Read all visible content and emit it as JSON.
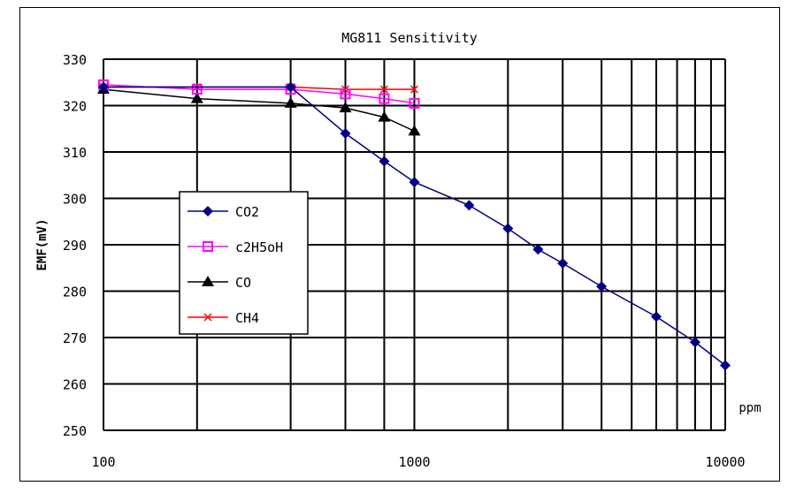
{
  "chart_data": {
    "type": "line",
    "title": "MG811 Sensitivity",
    "xlabel": "ppm",
    "ylabel": "EMF(mV)",
    "xscale": "log",
    "xlim": [
      100,
      10000
    ],
    "ylim": [
      250,
      330
    ],
    "x_ticks": [
      "100",
      "1000",
      "10000"
    ],
    "y_ticks": [
      "330",
      "320",
      "310",
      "300",
      "290",
      "280",
      "270",
      "260",
      "250"
    ],
    "grid": true,
    "legend": "center-left",
    "series": [
      {
        "name": "CO2",
        "color": "#000080",
        "marker": "diamond",
        "x": [
          100,
          400,
          600,
          800,
          1000,
          1500,
          2000,
          2500,
          3000,
          4000,
          6000,
          8000,
          10000
        ],
        "y": [
          324,
          324,
          314,
          308,
          303.5,
          298.5,
          293.5,
          289,
          286,
          281,
          274.5,
          269,
          264
        ]
      },
      {
        "name": "c2H5oH",
        "color": "#ff00ff",
        "marker": "square",
        "x": [
          100,
          200,
          400,
          600,
          800,
          1000
        ],
        "y": [
          324.5,
          323.5,
          323.5,
          322.5,
          321.5,
          320.5
        ]
      },
      {
        "name": "CO",
        "color": "#000000",
        "marker": "triangle",
        "x": [
          100,
          200,
          400,
          600,
          800,
          1000
        ],
        "y": [
          323.5,
          321.5,
          320.5,
          319.5,
          317.5,
          314.5
        ]
      },
      {
        "name": "CH4",
        "color": "#ff0000",
        "marker": "x",
        "x": [
          100,
          200,
          400,
          600,
          800,
          1000
        ],
        "y": [
          324,
          324,
          324,
          323.5,
          323.5,
          323.5
        ]
      }
    ]
  }
}
